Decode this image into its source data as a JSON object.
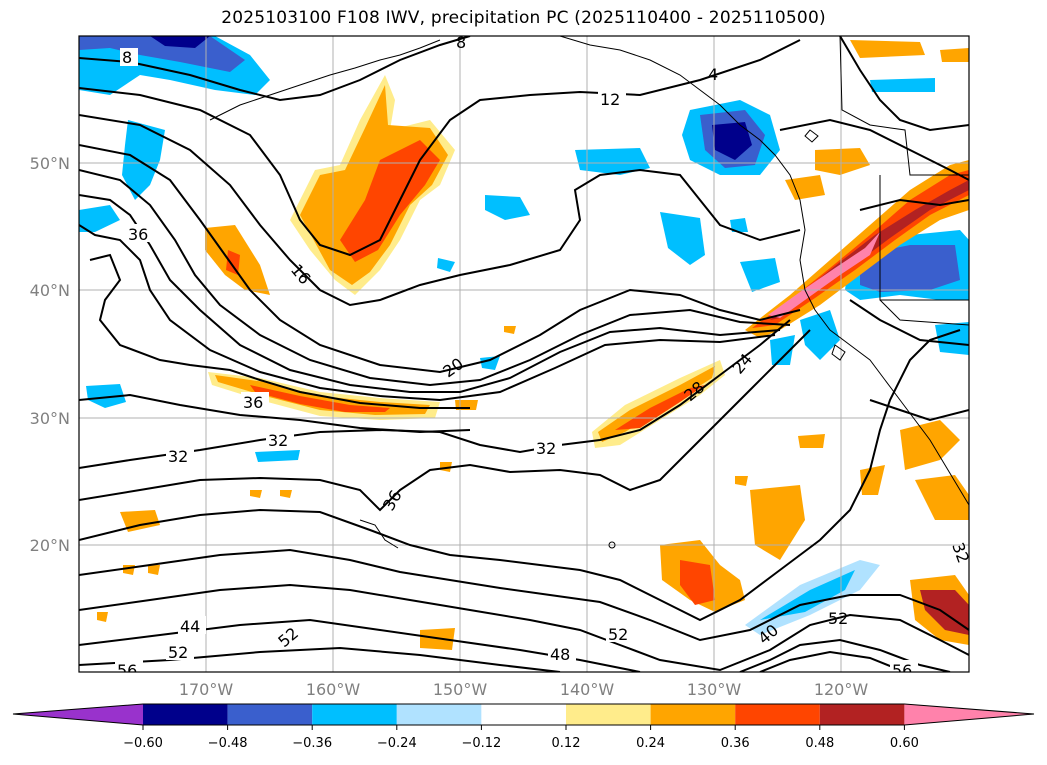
{
  "title": "2025103100 F108 IWV, precipitation PC (2025110400 - 2025110500)",
  "lat_labels": [
    "50°N",
    "40°N",
    "30°N",
    "20°N"
  ],
  "lon_labels": [
    "170°W",
    "160°W",
    "150°W",
    "140°W",
    "130°W",
    "120°W"
  ],
  "contour_labels": [
    "8",
    "12",
    "4",
    "36",
    "16",
    "20",
    "24",
    "28",
    "32",
    "32",
    "32",
    "36",
    "36",
    "44",
    "52",
    "52",
    "56",
    "56",
    "48",
    "52",
    "52",
    "40",
    "32",
    "8"
  ],
  "colorbar": {
    "ticks": [
      "−0.60",
      "−0.48",
      "−0.36",
      "−0.24",
      "−0.12",
      "0.12",
      "0.24",
      "0.36",
      "0.48",
      "0.60"
    ],
    "colors": {
      "under": "#9932cc",
      "b1": "#00008b",
      "b2": "#3a5fcd",
      "b3": "#00bfff",
      "b4": "#b0e2ff",
      "b5": "#ffffff",
      "b6": "#ffffff",
      "b7": "#ffec8b",
      "b8": "#ffa500",
      "b9": "#ff4500",
      "b10": "#b22222",
      "over": "#ff82ab"
    }
  }
}
